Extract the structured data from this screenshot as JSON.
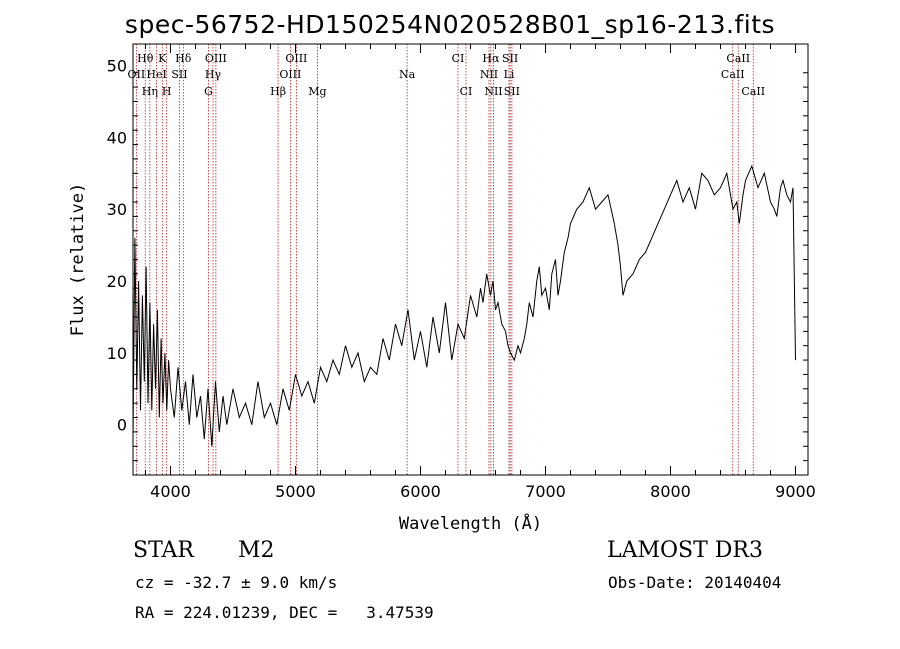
{
  "header": {
    "title": "spec-56752-HD150254N020528B01_sp16-213.fits"
  },
  "info": {
    "class": "STAR",
    "subclass": "M2",
    "survey": "LAMOST DR3",
    "cz": "cz = -32.7 ± 9.0 km/s",
    "obs_date": "Obs-Date: 20140404",
    "coords": "RA = 224.01239, DEC =   3.47539"
  },
  "chart_data": {
    "type": "line",
    "title": "spec-56752-HD150254N020528B01_sp16-213.fits",
    "xlabel": "Wavelength (Å)",
    "ylabel": "Flux (relative)",
    "xlim": [
      3700,
      9100
    ],
    "ylim": [
      -7,
      53
    ],
    "xticks": [
      4000,
      5000,
      6000,
      7000,
      8000,
      9000
    ],
    "yticks": [
      0,
      10,
      20,
      30,
      40,
      50
    ],
    "grid": false,
    "line_color": "#000000",
    "marker_color": "#b22222",
    "spectral_lines": [
      {
        "name": "Hθ",
        "wavelength": 3798,
        "row": 1
      },
      {
        "name": "OII",
        "wavelength": 3727,
        "row": 2
      },
      {
        "name": "Hη",
        "wavelength": 3835,
        "row": 3
      },
      {
        "name": "K",
        "wavelength": 3934,
        "row": 1
      },
      {
        "name": "HeI",
        "wavelength": 3889,
        "row": 2
      },
      {
        "name": "H",
        "wavelength": 3969,
        "row": 3
      },
      {
        "name": "Hδ",
        "wavelength": 4102,
        "row": 1
      },
      {
        "name": "SII",
        "wavelength": 4072,
        "row": 2
      },
      {
        "name": "OIII",
        "wavelength": 4363,
        "row": 1
      },
      {
        "name": "Hγ",
        "wavelength": 4340,
        "row": 2
      },
      {
        "name": "G",
        "wavelength": 4304,
        "row": 3
      },
      {
        "name": "Hβ",
        "wavelength": 4861,
        "row": 3
      },
      {
        "name": "OIII",
        "wavelength": 5007,
        "row": 1
      },
      {
        "name": "OIII",
        "wavelength": 4959,
        "row": 2
      },
      {
        "name": "Mg",
        "wavelength": 5175,
        "row": 3
      },
      {
        "name": "Na",
        "wavelength": 5893,
        "row": 2
      },
      {
        "name": "CI",
        "wavelength": 6300,
        "row": 1
      },
      {
        "name": "CI",
        "wavelength": 6364,
        "row": 3
      },
      {
        "name": "Hα",
        "wavelength": 6563,
        "row": 1
      },
      {
        "name": "NII",
        "wavelength": 6548,
        "row": 2
      },
      {
        "name": "NII",
        "wavelength": 6584,
        "row": 3
      },
      {
        "name": "SII",
        "wavelength": 6717,
        "row": 1
      },
      {
        "name": "Li",
        "wavelength": 6708,
        "row": 2
      },
      {
        "name": "SII",
        "wavelength": 6731,
        "row": 3
      },
      {
        "name": "CaII",
        "wavelength": 8542,
        "row": 1
      },
      {
        "name": "CaII",
        "wavelength": 8498,
        "row": 2
      },
      {
        "name": "CaII",
        "wavelength": 8662,
        "row": 3
      }
    ],
    "series": [
      {
        "x": [
          3700,
          3715,
          3730,
          3745,
          3760,
          3775,
          3790,
          3805,
          3820,
          3835,
          3850,
          3865,
          3880,
          3895,
          3910,
          3925,
          3940,
          3955,
          3970,
          3985,
          4000,
          4030,
          4060,
          4090,
          4120,
          4150,
          4180,
          4210,
          4240,
          4270,
          4300,
          4330,
          4360,
          4390,
          4420,
          4450,
          4500,
          4550,
          4600,
          4650,
          4700,
          4750,
          4800,
          4850,
          4900,
          4950,
          5000,
          5050,
          5100,
          5150,
          5200,
          5250,
          5300,
          5350,
          5400,
          5450,
          5500,
          5550,
          5600,
          5650,
          5700,
          5750,
          5800,
          5850,
          5900,
          5950,
          6000,
          6050,
          6100,
          6150,
          6200,
          6250,
          6300,
          6350,
          6400,
          6450,
          6480,
          6500,
          6530,
          6560,
          6580,
          6600,
          6620,
          6650,
          6680,
          6700,
          6720,
          6750,
          6780,
          6800,
          6830,
          6850,
          6870,
          6900,
          6930,
          6950,
          6970,
          7000,
          7030,
          7050,
          7080,
          7100,
          7120,
          7150,
          7180,
          7200,
          7250,
          7300,
          7350,
          7400,
          7450,
          7500,
          7550,
          7580,
          7600,
          7620,
          7650,
          7700,
          7750,
          7800,
          7850,
          7900,
          7950,
          8000,
          8050,
          8100,
          8150,
          8200,
          8250,
          8300,
          8350,
          8400,
          8450,
          8500,
          8530,
          8550,
          8580,
          8600,
          8650,
          8700,
          8750,
          8800,
          8830,
          8850,
          8880,
          8900,
          8930,
          8960,
          8980,
          9000
        ],
        "y": [
          -2,
          26,
          5,
          20,
          2,
          18,
          6,
          22,
          3,
          17,
          2,
          14,
          5,
          16,
          1,
          12,
          3,
          10,
          2,
          9,
          5,
          1,
          8,
          2,
          6,
          0,
          7,
          1,
          4,
          -2,
          5,
          -3,
          6,
          -1,
          4,
          0,
          5,
          1,
          3,
          0,
          6,
          1,
          3,
          0,
          5,
          2,
          7,
          4,
          6,
          3,
          8,
          6,
          9,
          7,
          11,
          8,
          10,
          6,
          8,
          7,
          12,
          9,
          14,
          11,
          16,
          9,
          13,
          8,
          15,
          10,
          17,
          9,
          14,
          12,
          18,
          15,
          19,
          17,
          21,
          18,
          20,
          16,
          17,
          14,
          13,
          11,
          10,
          9,
          11,
          10,
          12,
          14,
          17,
          15,
          20,
          22,
          18,
          19,
          16,
          21,
          23,
          18,
          20,
          24,
          26,
          28,
          30,
          31,
          33,
          30,
          31,
          32,
          28,
          25,
          22,
          18,
          20,
          21,
          23,
          24,
          26,
          28,
          30,
          32,
          34,
          31,
          33,
          30,
          35,
          34,
          32,
          33,
          35,
          30,
          31,
          28,
          32,
          34,
          36,
          33,
          35,
          31,
          30,
          29,
          33,
          34,
          32,
          31,
          33,
          9
        ]
      }
    ]
  }
}
